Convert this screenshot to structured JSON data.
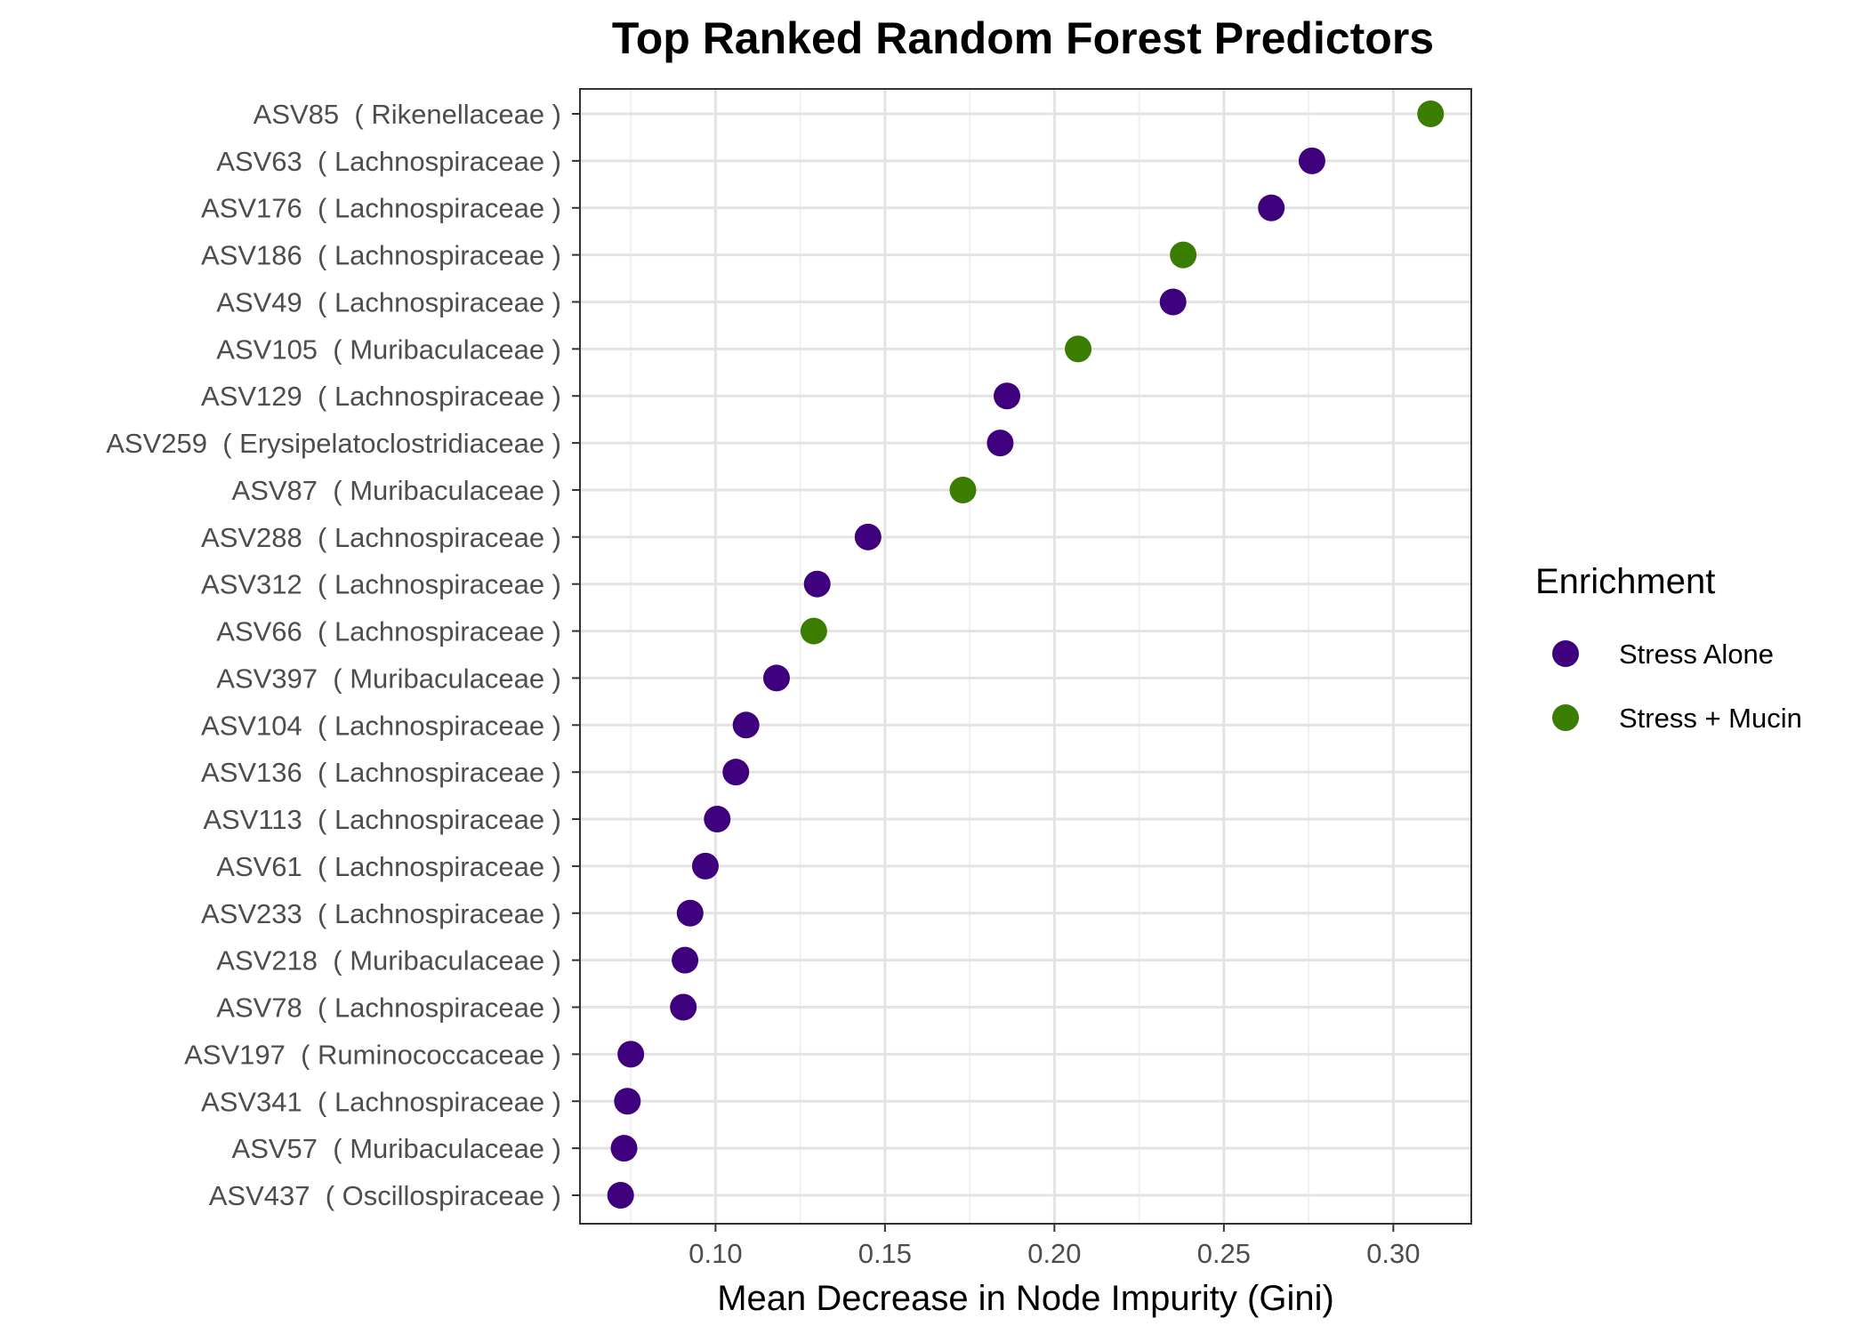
{
  "chart_data": {
    "type": "scatter",
    "title": "Top Ranked Random Forest Predictors",
    "xlabel": "Mean Decrease in Node Impurity (Gini)",
    "ylabel": "",
    "xlim": [
      0.06,
      0.323
    ],
    "xticks": [
      0.1,
      0.15,
      0.2,
      0.25,
      0.3
    ],
    "xtick_labels": [
      "0.10",
      "0.15",
      "0.20",
      "0.25",
      "0.30"
    ],
    "grid": true,
    "legend": {
      "title": "Enrichment",
      "placement": "right",
      "entries": [
        {
          "label": "Stress Alone",
          "color": "#3f007d"
        },
        {
          "label": "Stress + Mucin",
          "color": "#3a7d00"
        }
      ]
    },
    "points": [
      {
        "label": "ASV85  ( Rikenellaceae )",
        "value": 0.311,
        "group": "Stress + Mucin"
      },
      {
        "label": "ASV63  ( Lachnospiraceae )",
        "value": 0.276,
        "group": "Stress Alone"
      },
      {
        "label": "ASV176  ( Lachnospiraceae )",
        "value": 0.264,
        "group": "Stress Alone"
      },
      {
        "label": "ASV186  ( Lachnospiraceae )",
        "value": 0.238,
        "group": "Stress + Mucin"
      },
      {
        "label": "ASV49  ( Lachnospiraceae )",
        "value": 0.235,
        "group": "Stress Alone"
      },
      {
        "label": "ASV105  ( Muribaculaceae )",
        "value": 0.207,
        "group": "Stress + Mucin"
      },
      {
        "label": "ASV129  ( Lachnospiraceae )",
        "value": 0.186,
        "group": "Stress Alone"
      },
      {
        "label": "ASV259  ( Erysipelatoclostridiaceae )",
        "value": 0.184,
        "group": "Stress Alone"
      },
      {
        "label": "ASV87  ( Muribaculaceae )",
        "value": 0.173,
        "group": "Stress + Mucin"
      },
      {
        "label": "ASV288  ( Lachnospiraceae )",
        "value": 0.145,
        "group": "Stress Alone"
      },
      {
        "label": "ASV312  ( Lachnospiraceae )",
        "value": 0.13,
        "group": "Stress Alone"
      },
      {
        "label": "ASV66  ( Lachnospiraceae )",
        "value": 0.129,
        "group": "Stress + Mucin"
      },
      {
        "label": "ASV397  ( Muribaculaceae )",
        "value": 0.118,
        "group": "Stress Alone"
      },
      {
        "label": "ASV104  ( Lachnospiraceae )",
        "value": 0.109,
        "group": "Stress Alone"
      },
      {
        "label": "ASV136  ( Lachnospiraceae )",
        "value": 0.106,
        "group": "Stress Alone"
      },
      {
        "label": "ASV113  ( Lachnospiraceae )",
        "value": 0.1005,
        "group": "Stress Alone"
      },
      {
        "label": "ASV61  ( Lachnospiraceae )",
        "value": 0.097,
        "group": "Stress Alone"
      },
      {
        "label": "ASV233  ( Lachnospiraceae )",
        "value": 0.0925,
        "group": "Stress Alone"
      },
      {
        "label": "ASV218  ( Muribaculaceae )",
        "value": 0.091,
        "group": "Stress Alone"
      },
      {
        "label": "ASV78  ( Lachnospiraceae )",
        "value": 0.0905,
        "group": "Stress Alone"
      },
      {
        "label": "ASV197  ( Ruminococcaceae )",
        "value": 0.075,
        "group": "Stress Alone"
      },
      {
        "label": "ASV341  ( Lachnospiraceae )",
        "value": 0.074,
        "group": "Stress Alone"
      },
      {
        "label": "ASV57  ( Muribaculaceae )",
        "value": 0.073,
        "group": "Stress Alone"
      },
      {
        "label": "ASV437  ( Oscillospiraceae )",
        "value": 0.072,
        "group": "Stress Alone"
      }
    ]
  }
}
